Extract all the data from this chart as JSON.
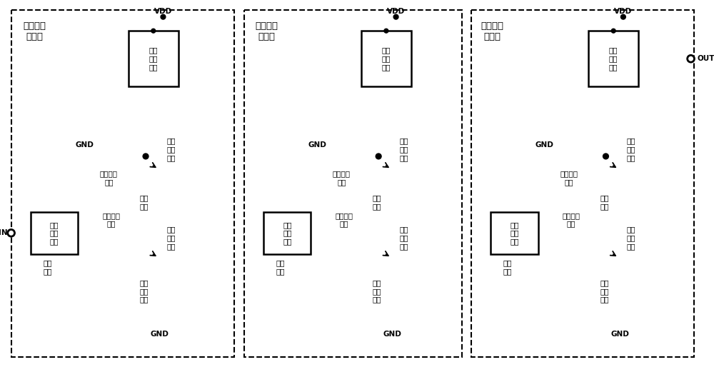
{
  "bg_color": "#ffffff",
  "line_color": "#000000",
  "line_width": 1.8,
  "stage_titles": [
    "第一级放\n大电路",
    "第二级放\n大电路",
    "第三级放\n大电路"
  ],
  "vdd_label": "VDD",
  "gnd_label": "GND",
  "in_label": "IN",
  "out_label": "OUT",
  "input_signal_label": "输入\n信号",
  "output_match_label": "输出\n匹配\n网络",
  "input_match_label": "输入\n匹配\n网络",
  "bias_cap_label": "偏置去耦\n电容",
  "interconnect_inductor_label": "互联\n电感",
  "input_tuning_inductor_label": "输入调谐\n电感",
  "emitter_feedback_inductor_label": "射极\n反馈\n电感",
  "common_base_label": "共基\n极晶\n体管",
  "common_emitter_label": "共射\n极晶\n体管",
  "font_size_small": 7.5,
  "font_size_title": 9.5,
  "font_size_port": 9
}
